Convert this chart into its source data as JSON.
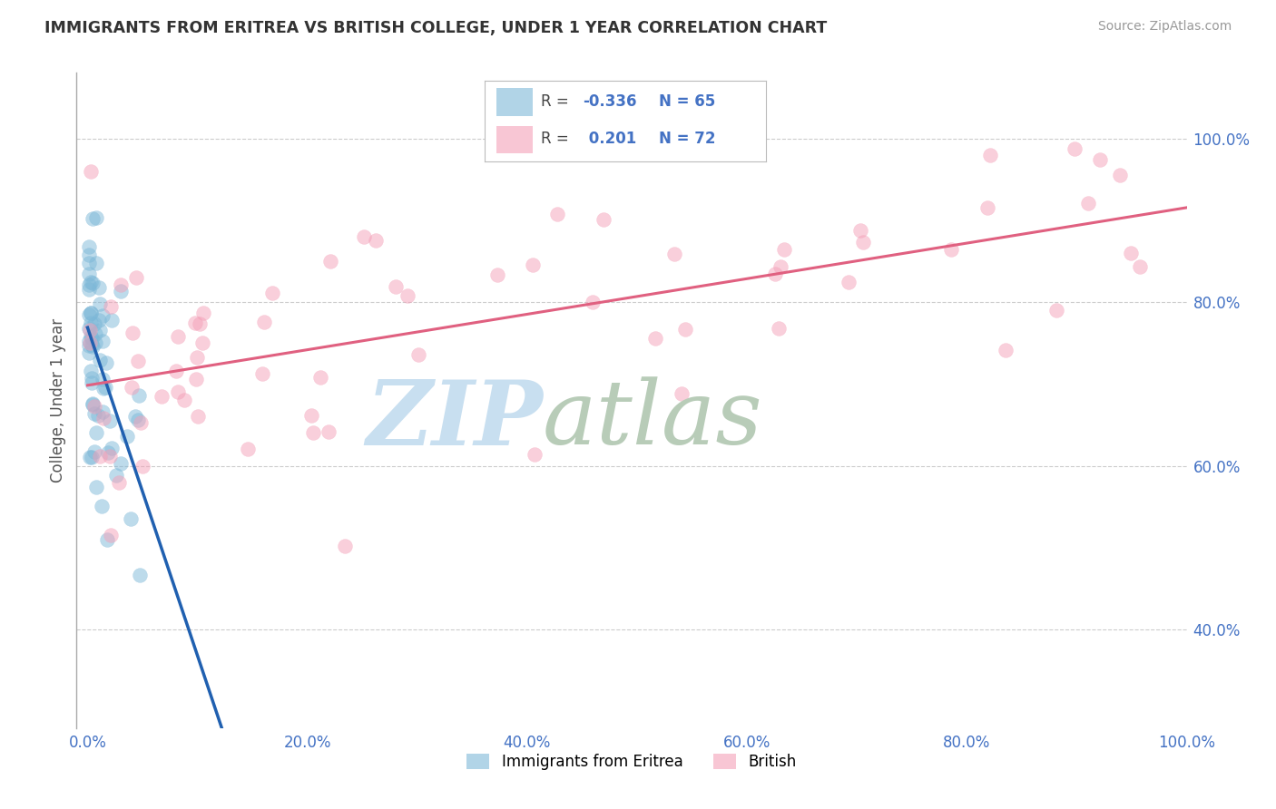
{
  "title": "IMMIGRANTS FROM ERITREA VS BRITISH COLLEGE, UNDER 1 YEAR CORRELATION CHART",
  "source_text": "Source: ZipAtlas.com",
  "ylabel": "College, Under 1 year",
  "xlim": [
    -0.01,
    1.0
  ],
  "ylim": [
    0.28,
    1.08
  ],
  "right_yticks": [
    0.4,
    0.6,
    0.8,
    1.0
  ],
  "right_yticklabels": [
    "40.0%",
    "60.0%",
    "80.0%",
    "100.0%"
  ],
  "xticks": [
    0.0,
    0.2,
    0.4,
    0.6,
    0.8,
    1.0
  ],
  "xticklabels": [
    "0.0%",
    "20.0%",
    "40.0%",
    "60.0%",
    "80.0%",
    "100.0%"
  ],
  "blue_color": "#7db8d8",
  "pink_color": "#f4a0b8",
  "blue_line_color": "#2060b0",
  "pink_line_color": "#e06080",
  "R_blue": -0.336,
  "N_blue": 65,
  "R_pink": 0.201,
  "N_pink": 72,
  "background_color": "#ffffff",
  "grid_color": "#cccccc"
}
